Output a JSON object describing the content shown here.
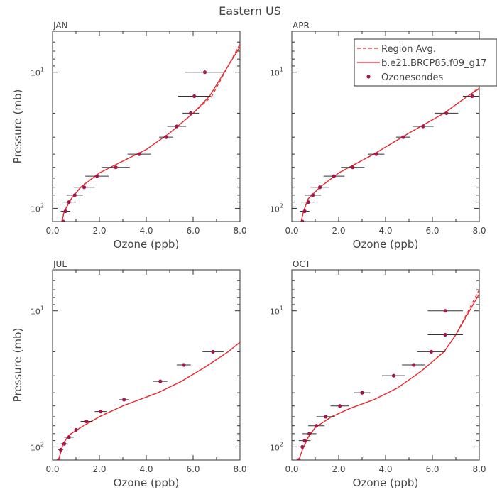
{
  "figure": {
    "title": "Eastern US"
  },
  "legend": {
    "position": "top-right of APR panel",
    "entries": [
      {
        "label": "Region Avg.",
        "style": "dashed-line"
      },
      {
        "label": "b.e21.BRCP85.f09_g17",
        "style": "solid-line"
      },
      {
        "label": "Ozonesondes",
        "style": "dot"
      }
    ]
  },
  "colors": {
    "model": "#e8262b",
    "obs": "#a3174a",
    "axis": "#333333",
    "errorbar": "#333333"
  },
  "chart_data": [
    {
      "panel": "JAN",
      "type": "line",
      "xlabel": "Ozone (ppb)",
      "ylabel": "Pressure (mb)",
      "xlim": [
        0,
        8
      ],
      "ylim_mb": [
        125,
        5
      ],
      "yscale": "log",
      "x_ticks": [
        "0.0",
        "2.0",
        "4.0",
        "6.0",
        "8.0"
      ],
      "y_ticks": [
        {
          "label": "10",
          "sup": "1",
          "value": 10
        },
        {
          "label": "10",
          "sup": "2",
          "value": 100
        }
      ],
      "series": [
        {
          "name": "Region Avg.",
          "style": "dashed",
          "points": [
            [
              0.4,
              125
            ],
            [
              0.5,
              105
            ],
            [
              0.8,
              85
            ],
            [
              1.2,
              70
            ],
            [
              2.0,
              55
            ],
            [
              3.0,
              45
            ],
            [
              4.0,
              37
            ],
            [
              5.0,
              28
            ],
            [
              6.0,
              20
            ],
            [
              6.8,
              15
            ],
            [
              8.0,
              6.2
            ]
          ]
        },
        {
          "name": "b.e21.BRCP85.f09_g17",
          "style": "solid",
          "points": [
            [
              0.4,
              125
            ],
            [
              0.5,
              105
            ],
            [
              0.8,
              85
            ],
            [
              1.2,
              70
            ],
            [
              2.0,
              55
            ],
            [
              3.0,
              45
            ],
            [
              4.0,
              37
            ],
            [
              5.0,
              28
            ],
            [
              6.0,
              20
            ],
            [
              6.7,
              15
            ],
            [
              8.0,
              6.5
            ]
          ]
        }
      ],
      "obs": [
        {
          "x": 0.45,
          "p": 125,
          "err": 0.1
        },
        {
          "x": 0.55,
          "p": 105,
          "err": 0.2
        },
        {
          "x": 0.7,
          "p": 90,
          "err": 0.3
        },
        {
          "x": 0.95,
          "p": 80,
          "err": 0.35
        },
        {
          "x": 1.35,
          "p": 70,
          "err": 0.45
        },
        {
          "x": 1.9,
          "p": 58,
          "err": 0.5
        },
        {
          "x": 2.7,
          "p": 50,
          "err": 0.6
        },
        {
          "x": 3.7,
          "p": 40,
          "err": 0.5
        },
        {
          "x": 4.85,
          "p": 30,
          "err": 0.3
        },
        {
          "x": 5.3,
          "p": 25,
          "err": 0.4
        },
        {
          "x": 5.9,
          "p": 20,
          "err": 0.35
        },
        {
          "x": 6.05,
          "p": 15,
          "err": 0.7
        },
        {
          "x": 6.5,
          "p": 10,
          "err": 0.85
        }
      ]
    },
    {
      "panel": "APR",
      "type": "line",
      "xlabel": "Ozone (ppb)",
      "ylabel": "",
      "xlim": [
        0,
        8
      ],
      "ylim_mb": [
        125,
        5
      ],
      "yscale": "log",
      "x_ticks": [
        "0.0",
        "2.0",
        "4.0",
        "6.0",
        "8.0"
      ],
      "y_ticks": [
        {
          "label": "10",
          "sup": "1",
          "value": 10
        },
        {
          "label": "10",
          "sup": "2",
          "value": 100
        }
      ],
      "series": [
        {
          "name": "Region Avg.",
          "style": "dashed",
          "points": [
            [
              0.4,
              125
            ],
            [
              0.5,
              105
            ],
            [
              0.7,
              85
            ],
            [
              1.2,
              70
            ],
            [
              2.0,
              55
            ],
            [
              3.5,
              40
            ],
            [
              5.0,
              28
            ],
            [
              6.5,
              20
            ],
            [
              7.5,
              15
            ],
            [
              8.0,
              13
            ]
          ]
        },
        {
          "name": "b.e21.BRCP85.f09_g17",
          "style": "solid",
          "points": [
            [
              0.4,
              125
            ],
            [
              0.5,
              105
            ],
            [
              0.7,
              85
            ],
            [
              1.2,
              70
            ],
            [
              2.0,
              55
            ],
            [
              3.5,
              40
            ],
            [
              5.0,
              28
            ],
            [
              6.5,
              20
            ],
            [
              7.5,
              15
            ],
            [
              8.0,
              13.2
            ]
          ]
        }
      ],
      "obs": [
        {
          "x": 0.45,
          "p": 125,
          "err": 0.1
        },
        {
          "x": 0.55,
          "p": 105,
          "err": 0.2
        },
        {
          "x": 0.7,
          "p": 90,
          "err": 0.3
        },
        {
          "x": 0.9,
          "p": 80,
          "err": 0.35
        },
        {
          "x": 1.2,
          "p": 70,
          "err": 0.4
        },
        {
          "x": 1.8,
          "p": 58,
          "err": 0.45
        },
        {
          "x": 2.6,
          "p": 50,
          "err": 0.5
        },
        {
          "x": 3.6,
          "p": 40,
          "err": 0.35
        },
        {
          "x": 4.75,
          "p": 30,
          "err": 0.3
        },
        {
          "x": 5.6,
          "p": 25,
          "err": 0.45
        },
        {
          "x": 6.6,
          "p": 20,
          "err": 0.5
        },
        {
          "x": 7.7,
          "p": 15,
          "err": 0.4
        }
      ]
    },
    {
      "panel": "JUL",
      "type": "line",
      "xlabel": "Ozone (ppb)",
      "ylabel": "Pressure (mb)",
      "xlim": [
        0,
        8
      ],
      "ylim_mb": [
        125,
        5
      ],
      "yscale": "log",
      "x_ticks": [
        "0.0",
        "2.0",
        "4.0",
        "6.0",
        "8.0"
      ],
      "y_ticks": [
        {
          "label": "10",
          "sup": "1",
          "value": 10
        },
        {
          "label": "10",
          "sup": "2",
          "value": 100
        }
      ],
      "series": [
        {
          "name": "Region Avg.",
          "style": "dashed",
          "points": [
            [
              0.25,
              125
            ],
            [
              0.35,
              110
            ],
            [
              0.45,
              95
            ],
            [
              0.7,
              82
            ],
            [
              1.2,
              72
            ],
            [
              2.0,
              60
            ],
            [
              3.0,
              50
            ],
            [
              4.5,
              40
            ],
            [
              5.5,
              33
            ],
            [
              6.5,
              26
            ],
            [
              7.5,
              20
            ],
            [
              8.0,
              17
            ]
          ]
        },
        {
          "name": "b.e21.BRCP85.f09_g17",
          "style": "solid",
          "points": [
            [
              0.25,
              125
            ],
            [
              0.35,
              110
            ],
            [
              0.45,
              95
            ],
            [
              0.7,
              82
            ],
            [
              1.2,
              72
            ],
            [
              2.0,
              60
            ],
            [
              3.0,
              50
            ],
            [
              4.5,
              40
            ],
            [
              5.5,
              33
            ],
            [
              6.5,
              26
            ],
            [
              7.5,
              20
            ],
            [
              8.0,
              17
            ]
          ]
        }
      ],
      "obs": [
        {
          "x": 0.25,
          "p": 125,
          "err": 0.1
        },
        {
          "x": 0.35,
          "p": 105,
          "err": 0.1
        },
        {
          "x": 0.5,
          "p": 95,
          "err": 0.15
        },
        {
          "x": 0.7,
          "p": 85,
          "err": 0.2
        },
        {
          "x": 1.0,
          "p": 75,
          "err": 0.25
        },
        {
          "x": 1.45,
          "p": 65,
          "err": 0.25
        },
        {
          "x": 2.05,
          "p": 55,
          "err": 0.25
        },
        {
          "x": 3.05,
          "p": 45,
          "err": 0.2
        },
        {
          "x": 4.6,
          "p": 33,
          "err": 0.3
        },
        {
          "x": 5.6,
          "p": 25,
          "err": 0.3
        },
        {
          "x": 6.85,
          "p": 20,
          "err": 0.45
        }
      ]
    },
    {
      "panel": "OCT",
      "type": "line",
      "xlabel": "Ozone (ppb)",
      "ylabel": "",
      "xlim": [
        0,
        8
      ],
      "ylim_mb": [
        125,
        5
      ],
      "yscale": "log",
      "x_ticks": [
        "0.0",
        "2.0",
        "4.0",
        "6.0",
        "8.0"
      ],
      "y_ticks": [
        {
          "label": "10",
          "sup": "1",
          "value": 10
        },
        {
          "label": "10",
          "sup": "2",
          "value": 100
        }
      ],
      "series": [
        {
          "name": "Region Avg.",
          "style": "dashed",
          "points": [
            [
              0.3,
              125
            ],
            [
              0.45,
              105
            ],
            [
              0.7,
              85
            ],
            [
              1.0,
              72
            ],
            [
              1.7,
              60
            ],
            [
              2.5,
              52
            ],
            [
              3.5,
              45
            ],
            [
              4.5,
              37
            ],
            [
              5.5,
              28
            ],
            [
              6.5,
              20
            ],
            [
              7.0,
              15
            ],
            [
              8.0,
              7.0
            ]
          ]
        },
        {
          "name": "b.e21.BRCP85.f09_g17",
          "style": "solid",
          "points": [
            [
              0.3,
              125
            ],
            [
              0.45,
              105
            ],
            [
              0.7,
              85
            ],
            [
              1.0,
              72
            ],
            [
              1.7,
              60
            ],
            [
              2.5,
              52
            ],
            [
              3.5,
              45
            ],
            [
              4.5,
              37
            ],
            [
              5.5,
              28
            ],
            [
              6.5,
              20
            ],
            [
              7.0,
              15
            ],
            [
              8.0,
              7.5
            ]
          ]
        }
      ],
      "obs": [
        {
          "x": 0.3,
          "p": 125,
          "err": 0.1
        },
        {
          "x": 0.45,
          "p": 100,
          "err": 0.15
        },
        {
          "x": 0.55,
          "p": 90,
          "err": 0.25
        },
        {
          "x": 0.75,
          "p": 80,
          "err": 0.3
        },
        {
          "x": 1.05,
          "p": 70,
          "err": 0.35
        },
        {
          "x": 1.45,
          "p": 60,
          "err": 0.4
        },
        {
          "x": 2.05,
          "p": 50,
          "err": 0.4
        },
        {
          "x": 3.0,
          "p": 40,
          "err": 0.35
        },
        {
          "x": 4.35,
          "p": 30,
          "err": 0.5
        },
        {
          "x": 5.2,
          "p": 25,
          "err": 0.5
        },
        {
          "x": 5.95,
          "p": 20,
          "err": 0.6
        },
        {
          "x": 6.55,
          "p": 15,
          "err": 0.75
        },
        {
          "x": 6.55,
          "p": 10,
          "err": 0.75
        }
      ]
    }
  ]
}
